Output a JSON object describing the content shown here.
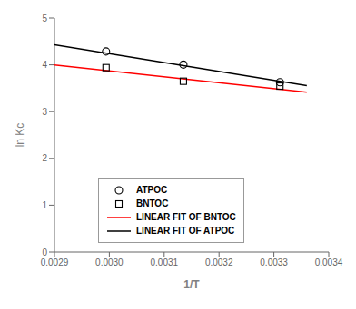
{
  "chart_data": {
    "type": "scatter",
    "xlabel": "1/T",
    "ylabel": "ln Kc",
    "xlim": [
      0.0029,
      0.0034
    ],
    "xticks": [
      0.0029,
      {
        "value": 0.003,
        "label": "0.0030"
      },
      {
        "value": 0.0031,
        "label": "0.0031"
      },
      {
        "value": 0.0032,
        "label": "0.0032"
      },
      {
        "value": 0.0033,
        "label": "0.0033"
      },
      0.0034
    ],
    "ylim": [
      0,
      5
    ],
    "yticks": [
      0,
      1,
      2,
      3,
      4,
      5
    ],
    "grid": false,
    "legend": "lower left",
    "series": [
      {
        "name": "ATPOC",
        "type": "scatter",
        "marker": "circle",
        "color": "#000000",
        "x": [
          0.002994,
          0.003135,
          0.003311
        ],
        "values": [
          4.285,
          4.005,
          3.63
        ]
      },
      {
        "name": "BNTOC",
        "type": "scatter",
        "marker": "square",
        "color": "#000000",
        "x": [
          0.002994,
          0.003135,
          0.003311
        ],
        "values": [
          3.94,
          3.65,
          3.545
        ]
      },
      {
        "name": "LINEAR FIT OF BNTOC",
        "type": "line",
        "color": "#ff0000",
        "x": [
          0.0029,
          0.00336
        ],
        "values": [
          3.995,
          3.415
        ]
      },
      {
        "name": "LINEAR FIT OF ATPOC",
        "type": "line",
        "color": "#000000",
        "x": [
          0.0029,
          0.00336
        ],
        "values": [
          4.43,
          3.555
        ]
      }
    ]
  }
}
